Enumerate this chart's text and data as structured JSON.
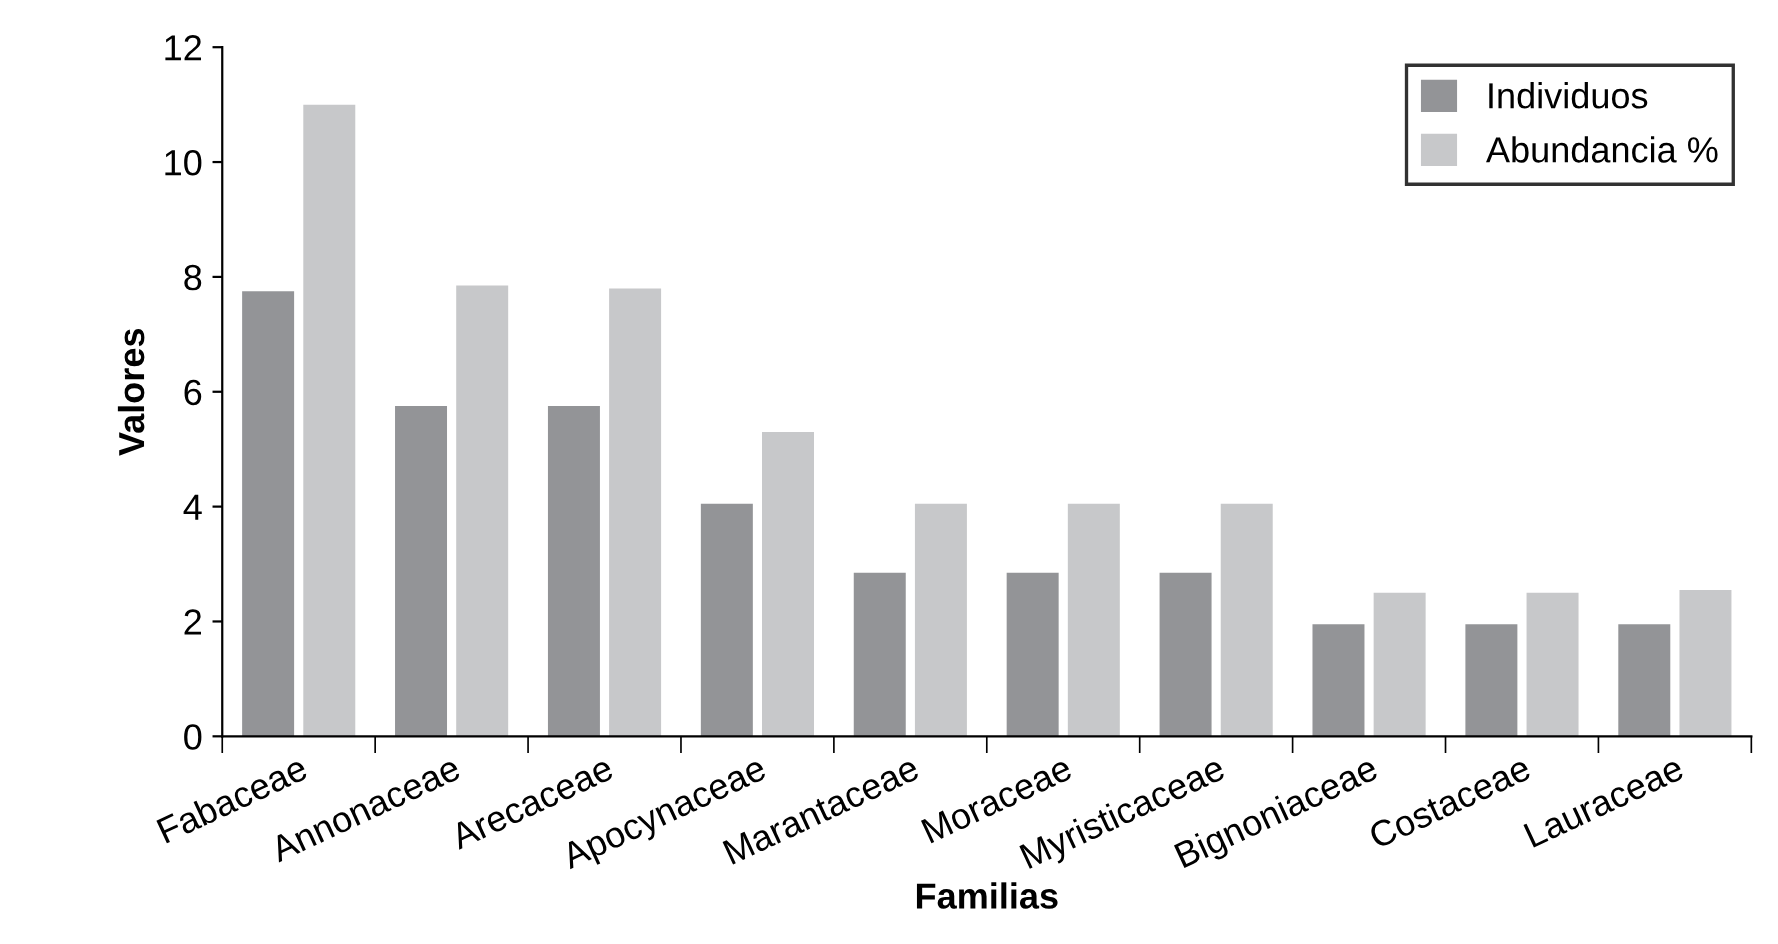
{
  "chart_data": {
    "type": "bar",
    "xlabel": "Familias",
    "ylabel": "Valores",
    "categories": [
      "Fabaceae",
      "Annonaceae",
      "Arecaceae",
      "Apocynaceae",
      "Marantaceae",
      "Moraceae",
      "Myristicaceae",
      "Bignoniaceae",
      "Costaceae",
      "Lauraceae"
    ],
    "series": [
      {
        "name": "Individuos",
        "color": "#939497",
        "values": [
          7.75,
          5.75,
          5.75,
          4.05,
          2.85,
          2.85,
          2.85,
          1.95,
          1.95,
          1.95
        ]
      },
      {
        "name": "Abundancia %",
        "color": "#c7c8ca",
        "values": [
          11.0,
          7.85,
          7.8,
          5.3,
          4.05,
          4.05,
          4.05,
          2.5,
          2.5,
          2.55
        ]
      }
    ],
    "ylim": [
      0,
      12
    ],
    "yticks": [
      0,
      2,
      4,
      6,
      8,
      10,
      12
    ],
    "grid": false,
    "legend": "top right"
  }
}
